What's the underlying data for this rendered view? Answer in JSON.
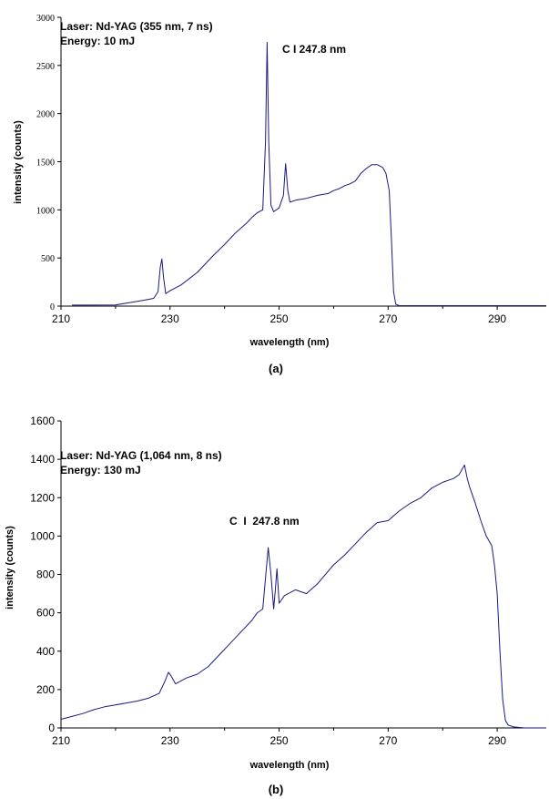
{
  "chart_data": [
    {
      "type": "line",
      "panel_label": "(a)",
      "xlabel": "wavelength (nm)",
      "ylabel": "intensity (counts)",
      "xlim": [
        210,
        299
      ],
      "ylim": [
        0,
        3000
      ],
      "xticks": [
        210,
        230,
        250,
        270,
        290
      ],
      "yticks": [
        0,
        500,
        1000,
        1500,
        2000,
        2500,
        3000
      ],
      "annotations": [
        "Laser: Nd-YAG (355 nm, 7 ns)",
        "Energy: 10 mJ",
        "C I 247.8 nm"
      ],
      "line_color": "#1a1a80",
      "series": [
        {
          "x": [
            212,
            215,
            220,
            223,
            225,
            227,
            227.8,
            228.2,
            228.5,
            228.8,
            229.2,
            230,
            232,
            235,
            238,
            240,
            242,
            244,
            245,
            246,
            247,
            247.5,
            247.8,
            248.1,
            248.5,
            249,
            250,
            250.8,
            251.2,
            251.6,
            252,
            253,
            255,
            257,
            259,
            260,
            261,
            262,
            263,
            264,
            265,
            266,
            267,
            268,
            269,
            269.6,
            270.2,
            270.6,
            271,
            271.4,
            272,
            275,
            280,
            285,
            290,
            295,
            299
          ],
          "y": [
            10,
            10,
            12,
            40,
            60,
            80,
            150,
            400,
            490,
            300,
            130,
            160,
            220,
            350,
            530,
            640,
            760,
            860,
            920,
            970,
            1000,
            1700,
            2740,
            1700,
            1050,
            980,
            1020,
            1150,
            1480,
            1200,
            1080,
            1100,
            1120,
            1150,
            1170,
            1200,
            1220,
            1250,
            1270,
            1300,
            1380,
            1430,
            1470,
            1470,
            1440,
            1380,
            1200,
            700,
            150,
            20,
            5,
            5,
            5,
            5,
            5,
            5,
            5
          ]
        }
      ]
    },
    {
      "type": "line",
      "panel_label": "(b)",
      "xlabel": "wavelength (nm)",
      "ylabel": "intensity (counts)",
      "xlim": [
        210,
        299
      ],
      "ylim": [
        0,
        1600
      ],
      "xticks": [
        210,
        230,
        250,
        270,
        290
      ],
      "yticks": [
        0,
        200,
        400,
        600,
        800,
        1000,
        1200,
        1400,
        1600
      ],
      "annotations": [
        "Laser: Nd-YAG (1,064 nm, 8 ns)",
        "Energy: 130 mJ",
        "C  I  247.8 nm"
      ],
      "line_color": "#1a1a80",
      "series": [
        {
          "x": [
            210,
            212,
            214,
            216,
            218,
            220,
            222,
            224,
            226,
            228,
            229,
            229.7,
            230.2,
            231,
            233,
            235,
            237,
            239,
            241,
            243,
            245,
            246,
            247,
            247.5,
            248,
            248.5,
            249,
            249.3,
            249.6,
            250,
            251,
            253,
            255,
            257,
            260,
            262,
            264,
            266,
            268,
            270,
            272,
            274,
            276,
            278,
            280,
            282,
            283,
            284,
            284.5,
            285,
            286,
            287,
            288,
            289,
            289.5,
            290,
            290.5,
            291,
            291.5,
            292,
            293,
            295,
            299
          ],
          "y": [
            45,
            60,
            75,
            95,
            110,
            120,
            130,
            140,
            155,
            180,
            240,
            290,
            270,
            230,
            260,
            280,
            320,
            380,
            440,
            500,
            560,
            600,
            620,
            780,
            940,
            800,
            620,
            720,
            830,
            650,
            690,
            720,
            700,
            750,
            850,
            900,
            960,
            1020,
            1070,
            1080,
            1130,
            1170,
            1200,
            1250,
            1280,
            1300,
            1320,
            1370,
            1300,
            1250,
            1170,
            1080,
            1000,
            950,
            850,
            700,
            400,
            150,
            40,
            15,
            5,
            0,
            0
          ]
        }
      ]
    }
  ]
}
